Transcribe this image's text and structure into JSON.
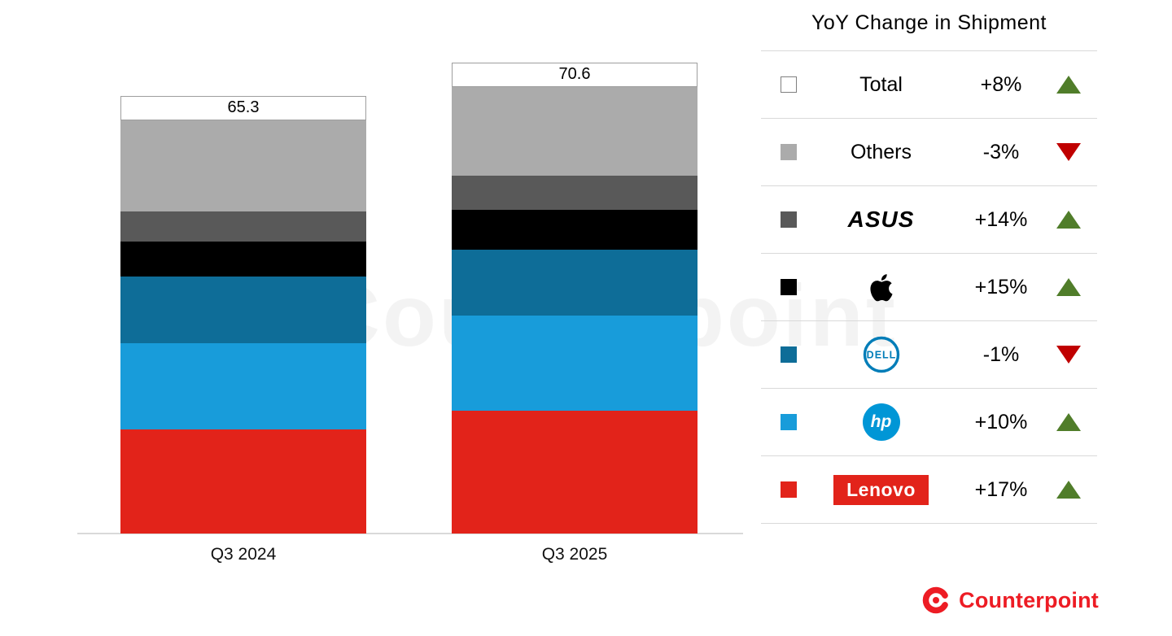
{
  "chart_data": {
    "type": "bar",
    "stacked": true,
    "title": "YoY Change in Shipment",
    "unit": "million units",
    "categories": [
      "Q3 2024",
      "Q3 2025"
    ],
    "totals": [
      65.3,
      70.6
    ],
    "series": [
      {
        "name": "Lenovo",
        "color": "#e2231a",
        "values": [
          16.5,
          19.4
        ],
        "yoy": "+17%"
      },
      {
        "name": "HP",
        "color": "#189cda",
        "values": [
          13.6,
          15.0
        ],
        "yoy": "+10%"
      },
      {
        "name": "Dell",
        "color": "#0e6d98",
        "values": [
          10.5,
          10.4
        ],
        "yoy": "-1%"
      },
      {
        "name": "Apple",
        "color": "#000000",
        "values": [
          5.5,
          6.3
        ],
        "yoy": "+15%"
      },
      {
        "name": "ASUS",
        "color": "#595959",
        "values": [
          4.8,
          5.5
        ],
        "yoy": "+14%"
      },
      {
        "name": "Others",
        "color": "#ababab",
        "values": [
          14.4,
          14.0
        ],
        "yoy": "-3%"
      }
    ],
    "total_yoy": "+8%",
    "legend_position": "right",
    "grid": false
  },
  "legend": {
    "title": "YoY Change in Shipment",
    "up_color": "#507d2a",
    "down_color": "#c00000",
    "rows": [
      {
        "label": "Total",
        "swatch": "#ffffff",
        "swatch_border": "#7f7f7f",
        "logo": "text",
        "logo_text": "Total",
        "change": "+8%",
        "direction": "up"
      },
      {
        "label": "Others",
        "swatch": "#ababab",
        "logo": "text",
        "logo_text": "Others",
        "change": "-3%",
        "direction": "down"
      },
      {
        "label": "ASUS",
        "swatch": "#595959",
        "logo": "asus",
        "logo_text": "ASUS",
        "change": "+14%",
        "direction": "up"
      },
      {
        "label": "Apple",
        "swatch": "#000000",
        "logo": "apple",
        "logo_text": "",
        "change": "+15%",
        "direction": "up"
      },
      {
        "label": "Dell",
        "swatch": "#0e6d98",
        "logo": "dell",
        "logo_text": "DELL",
        "change": "-1%",
        "direction": "down"
      },
      {
        "label": "HP",
        "swatch": "#189cda",
        "logo": "hp",
        "logo_text": "hp",
        "change": "+10%",
        "direction": "up"
      },
      {
        "label": "Lenovo",
        "swatch": "#e2231a",
        "logo": "lenovo",
        "logo_text": "Lenovo",
        "change": "+17%",
        "direction": "up"
      }
    ],
    "brand_colors": {
      "dell_blue": "#007db8",
      "hp_blue": "#0096d6",
      "lenovo_red": "#e2231a"
    }
  },
  "watermark": {
    "text": "Counterpoint"
  },
  "branding": {
    "name": "Counterpoint",
    "color": "#ed1c24"
  }
}
